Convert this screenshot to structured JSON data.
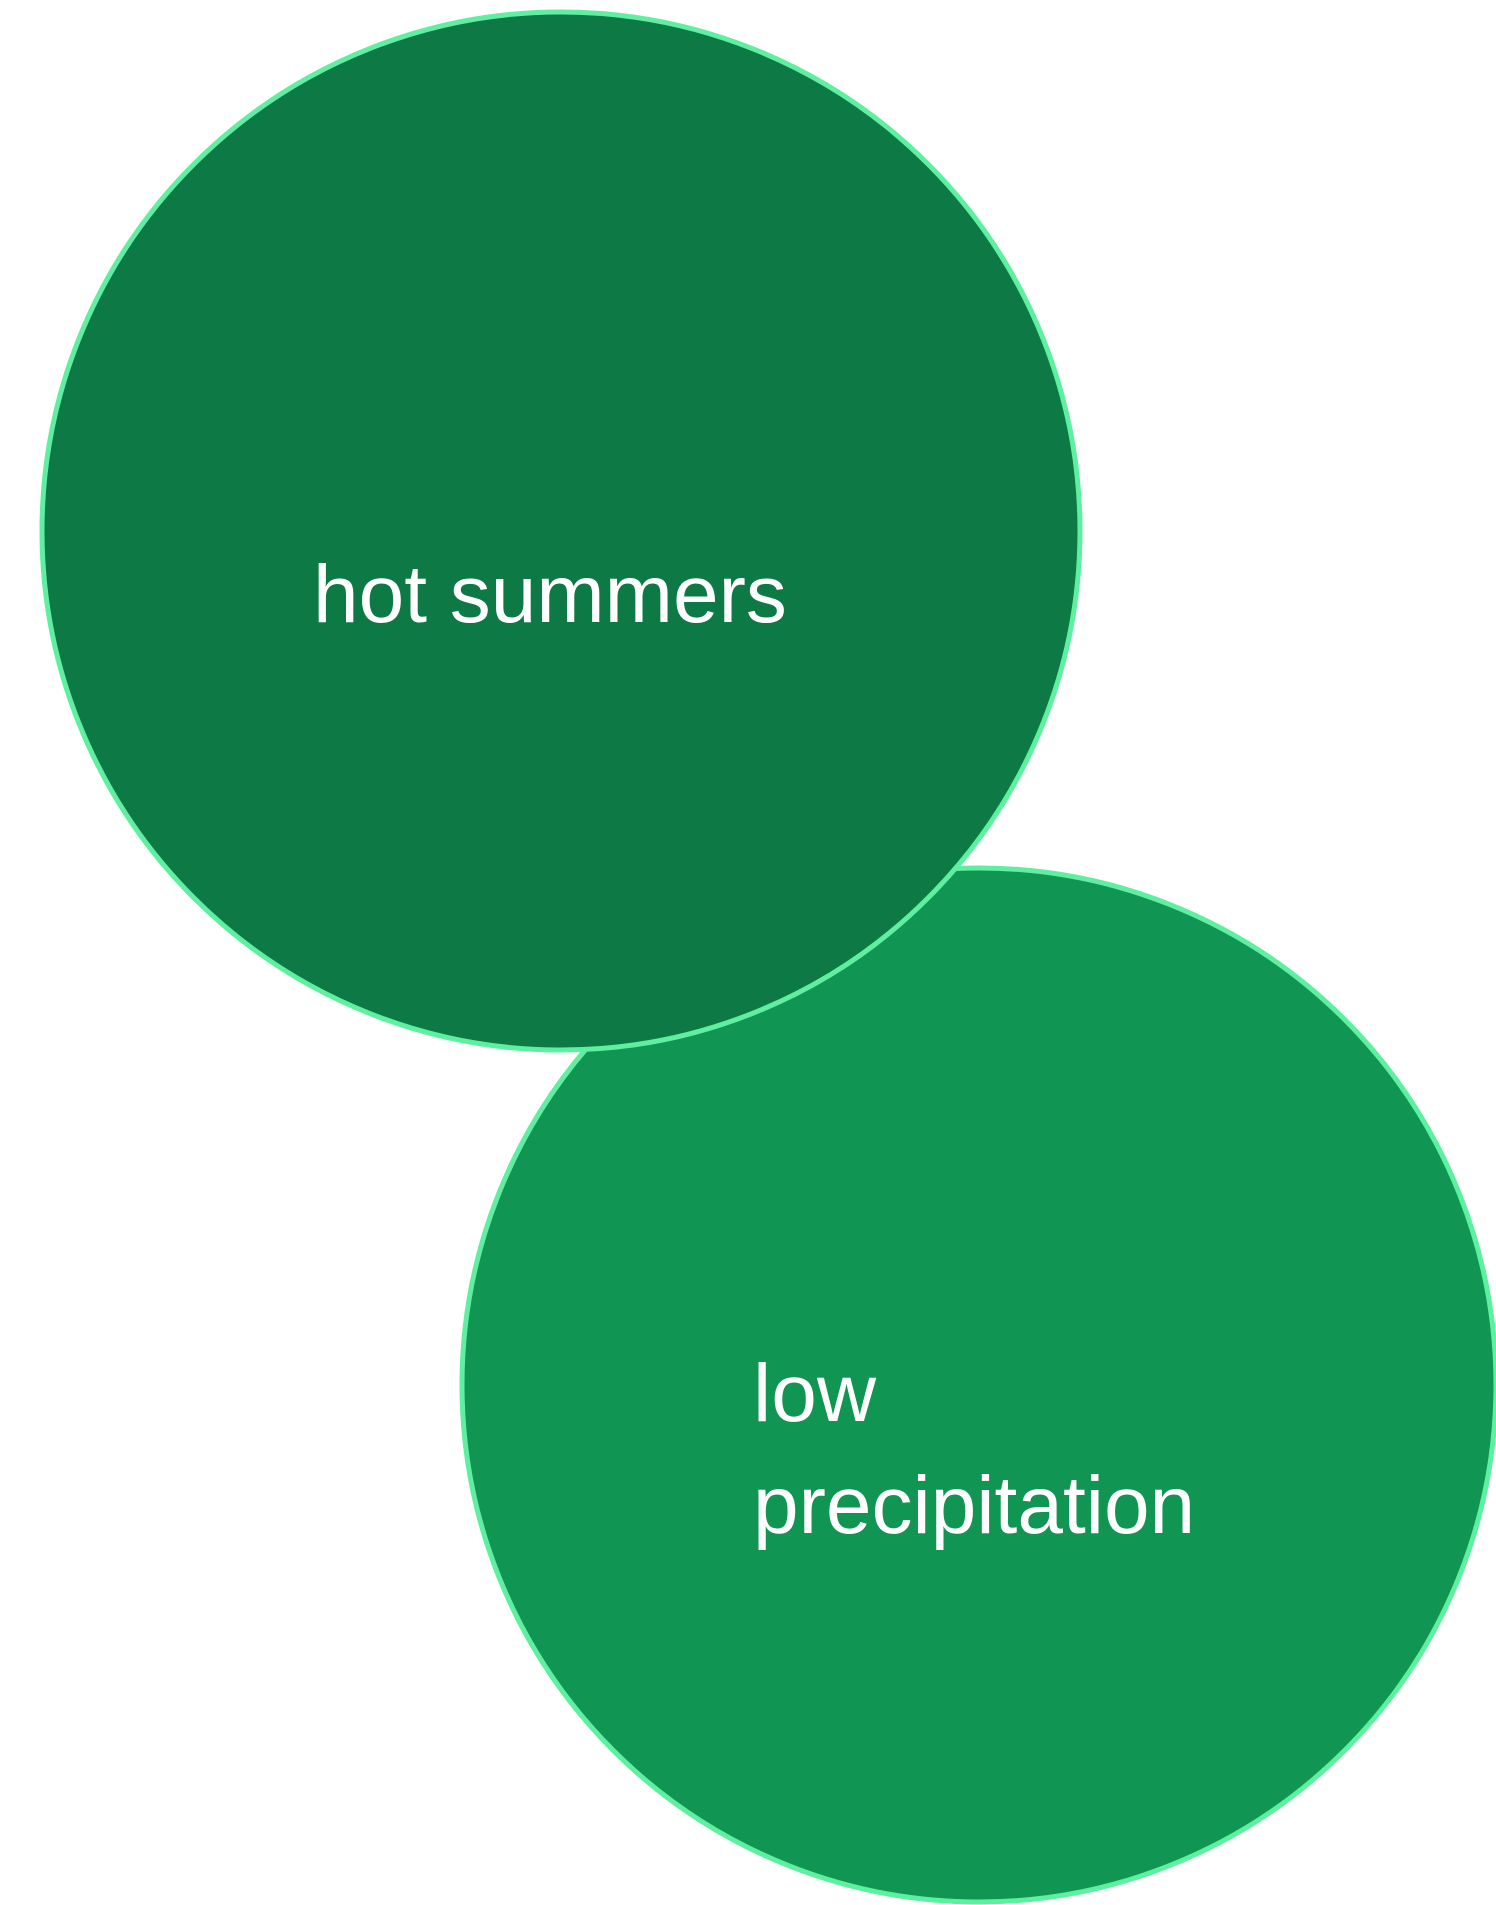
{
  "nodes": [
    {
      "label_lines": [
        "hot summers"
      ]
    },
    {
      "label_lines": [
        "low",
        "precipitation"
      ]
    }
  ]
}
